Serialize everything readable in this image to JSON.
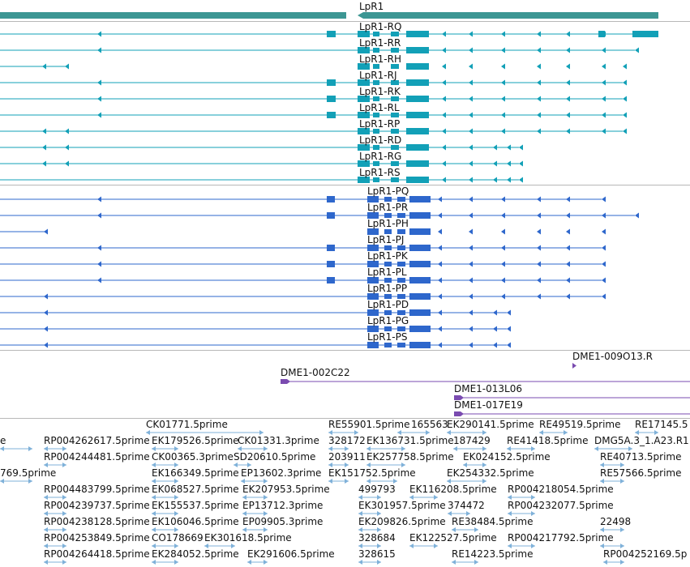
{
  "gene": {
    "label": "LpR1",
    "color": "#3c9693"
  },
  "colors": {
    "transcript": "#12a0b7",
    "protein": "#2e67cc",
    "clone": "#7a4bb0",
    "est": "#7fb1d9"
  },
  "transcripts": [
    {
      "label": "LpR1-RQ"
    },
    {
      "label": "LpR1-RR"
    },
    {
      "label": "LpR1-RH"
    },
    {
      "label": "LpR1-RJ"
    },
    {
      "label": "LpR1-RK"
    },
    {
      "label": "LpR1-RL"
    },
    {
      "label": "LpR1-RP"
    },
    {
      "label": "LpR1-RD"
    },
    {
      "label": "LpR1-RG"
    },
    {
      "label": "LpR1-RS"
    }
  ],
  "proteins": [
    {
      "label": "LpR1-PQ"
    },
    {
      "label": "LpR1-PR"
    },
    {
      "label": "LpR1-PH"
    },
    {
      "label": "LpR1-PJ"
    },
    {
      "label": "LpR1-PK"
    },
    {
      "label": "LpR1-PL"
    },
    {
      "label": "LpR1-PP"
    },
    {
      "label": "LpR1-PD"
    },
    {
      "label": "LpR1-PG"
    },
    {
      "label": "LpR1-PS"
    }
  ],
  "clones": [
    {
      "label": "DME1-009O13.R"
    },
    {
      "label": "DME1-002C22"
    },
    {
      "label": "DME1-013L06"
    },
    {
      "label": "DME1-017E19"
    }
  ],
  "ests": [
    {
      "label": "CK01771.5prime"
    },
    {
      "label": "RE55901.5prime"
    },
    {
      "label": "165563"
    },
    {
      "label": "EK290141.5prime"
    },
    {
      "label": "RE49519.5prime"
    },
    {
      "label": "RE17145.5"
    },
    {
      "label": "e"
    },
    {
      "label": "RP004262617.5prime"
    },
    {
      "label": "EK179526.5prime"
    },
    {
      "label": "CK01331.3prime"
    },
    {
      "label": "328172"
    },
    {
      "label": "EK136731.5prime"
    },
    {
      "label": "187429"
    },
    {
      "label": "RE41418.5prime"
    },
    {
      "label": "DMG5A.3_1.A23.R1"
    },
    {
      "label": "RP004244481.5prime"
    },
    {
      "label": "CK00365.3prime"
    },
    {
      "label": "SD20610.5prime"
    },
    {
      "label": "203911"
    },
    {
      "label": "EK257758.5prime"
    },
    {
      "label": "EK024152.5prime"
    },
    {
      "label": "RE40713.5prime"
    },
    {
      "label": "769.5prime"
    },
    {
      "label": "EK166349.5prime"
    },
    {
      "label": "EP13602.3prime"
    },
    {
      "label": "EK151752.5prime"
    },
    {
      "label": "EK254332.5prime"
    },
    {
      "label": "RE57566.5prime"
    },
    {
      "label": "RP004483799.5prime"
    },
    {
      "label": "EK068527.5prime"
    },
    {
      "label": "EK207953.5prime"
    },
    {
      "label": "499793"
    },
    {
      "label": "EK116208.5prime"
    },
    {
      "label": "RP004218054.5prime"
    },
    {
      "label": "RP004239737.5prime"
    },
    {
      "label": "EK155537.5prime"
    },
    {
      "label": "EP13712.3prime"
    },
    {
      "label": "EK301957.5prime"
    },
    {
      "label": "374472"
    },
    {
      "label": "RP004232077.5prime"
    },
    {
      "label": "RP004238128.5prime"
    },
    {
      "label": "EK106046.5prime"
    },
    {
      "label": "EP09905.3prime"
    },
    {
      "label": "EK209826.5prime"
    },
    {
      "label": "RE38484.5prime"
    },
    {
      "label": "22498"
    },
    {
      "label": "RP004253849.5prime"
    },
    {
      "label": "CO178669"
    },
    {
      "label": "EK301618.5prime"
    },
    {
      "label": "328684"
    },
    {
      "label": "EK122527.5prime"
    },
    {
      "label": "RP004217792.5prime"
    },
    {
      "label": "RP004264418.5prime"
    },
    {
      "label": "EK284052.5prime"
    },
    {
      "label": "EK291606.5prime"
    },
    {
      "label": "328615"
    },
    {
      "label": "RE14223.5prime"
    },
    {
      "label": "RP004252169.5p"
    }
  ]
}
